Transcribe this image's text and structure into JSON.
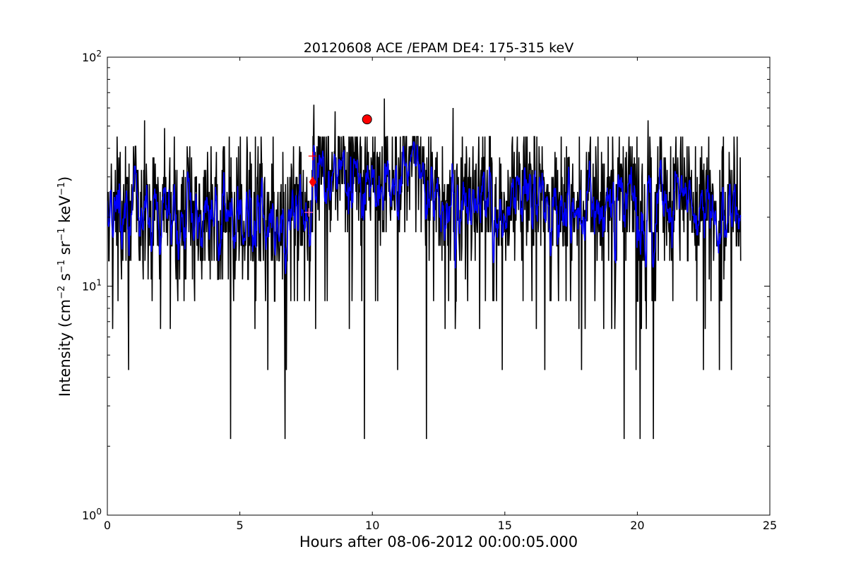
{
  "chart_data": {
    "type": "line",
    "title": "20120608 ACE /EPAM DE4: 175-315 keV",
    "xlabel": "Hours after 08-06-2012 00:00:05.000",
    "ylabel": {
      "prefix": "Intensity (cm",
      "exp1": "−2",
      "s": " s",
      "exp2": "−1",
      "sr": " sr",
      "exp3": "−1",
      "kev": " keV",
      "exp4": "−1",
      "suffix": ")"
    },
    "xlim": [
      0,
      25
    ],
    "ylim": [
      1,
      100
    ],
    "yscale": "log",
    "grid": false,
    "x_ticks": [
      0,
      5,
      10,
      15,
      20,
      25
    ],
    "x_tick_labels": [
      "0",
      "5",
      "10",
      "15",
      "20",
      "25"
    ],
    "y_ticks": [
      1,
      10,
      100
    ],
    "y_tick_labels": [
      {
        "base": "10",
        "exp": "0"
      },
      {
        "base": "10",
        "exp": "1"
      },
      {
        "base": "10",
        "exp": "2"
      }
    ],
    "series": [
      {
        "color": "#000000",
        "style": "raw",
        "x_range": [
          0,
          23.9
        ],
        "baseline_before": 21,
        "baseline_after": 27,
        "onset_hour": 7.75,
        "spikes_down": [
          {
            "x": 0.8,
            "y": 4.3
          },
          {
            "x": 4.65,
            "y": 2.15
          },
          {
            "x": 6.05,
            "y": 4.3
          },
          {
            "x": 6.7,
            "y": 2.15
          },
          {
            "x": 6.75,
            "y": 4.3
          },
          {
            "x": 9.7,
            "y": 2.15
          },
          {
            "x": 10.95,
            "y": 4.3
          },
          {
            "x": 12.05,
            "y": 2.15
          },
          {
            "x": 14.9,
            "y": 4.3
          },
          {
            "x": 16.5,
            "y": 4.3
          },
          {
            "x": 17.9,
            "y": 4.3
          },
          {
            "x": 19.5,
            "y": 2.15
          },
          {
            "x": 19.95,
            "y": 4.3
          },
          {
            "x": 20.1,
            "y": 2.15
          },
          {
            "x": 20.6,
            "y": 2.15
          },
          {
            "x": 22.5,
            "y": 4.3
          },
          {
            "x": 23.1,
            "y": 4.3
          },
          {
            "x": 23.55,
            "y": 4.3
          }
        ],
        "spikes_up": [
          {
            "x": 1.4,
            "y": 53
          },
          {
            "x": 2.15,
            "y": 49
          },
          {
            "x": 7.8,
            "y": 62
          },
          {
            "x": 8.6,
            "y": 58
          },
          {
            "x": 10.45,
            "y": 66
          },
          {
            "x": 13.05,
            "y": 60
          },
          {
            "x": 20.4,
            "y": 53
          },
          {
            "x": 20.9,
            "y": 45
          }
        ]
      },
      {
        "color": "#0000ff",
        "style": "smoothed"
      }
    ],
    "markers": [
      {
        "type": "circle",
        "x": 9.8,
        "y": 53.5,
        "color": "#ff0000"
      },
      {
        "type": "diamond",
        "x": 7.75,
        "y": 28.5,
        "color": "#ff0000"
      },
      {
        "type": "plus",
        "x": 7.75,
        "y": 37,
        "color": "#ff0000"
      },
      {
        "type": "plus",
        "x": 7.6,
        "y": 21,
        "color": "#ff69b4"
      }
    ]
  }
}
